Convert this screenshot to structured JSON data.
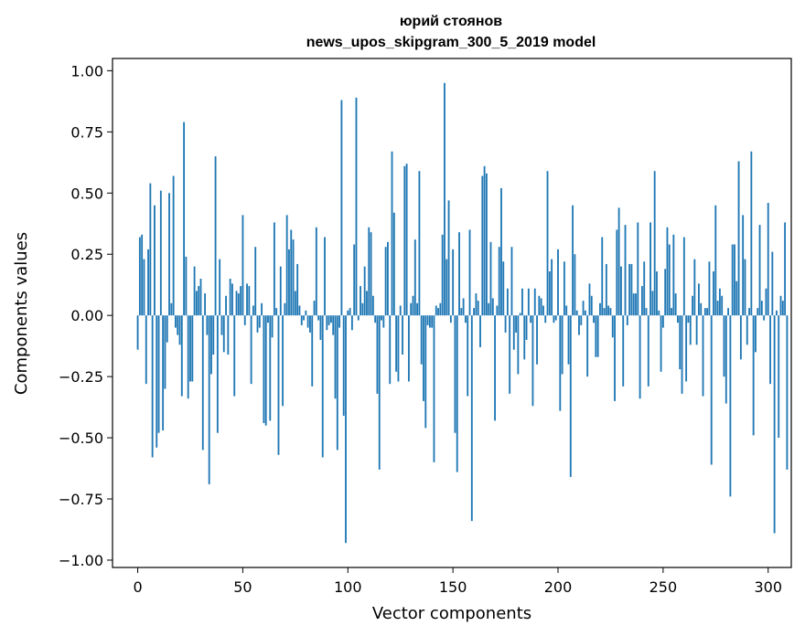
{
  "chart_data": {
    "type": "bar",
    "title": "юрий стоянов",
    "subtitle": "news_upos_skipgram_300_5_2019 model",
    "xlabel": "Vector components",
    "ylabel": "Components values",
    "xlim": [
      -12,
      311
    ],
    "ylim": [
      -1.03,
      1.05
    ],
    "xticks": [
      0,
      50,
      100,
      150,
      200,
      250,
      300
    ],
    "yticks": [
      1.0,
      0.75,
      0.5,
      0.25,
      0.0,
      -0.25,
      -0.5,
      -0.75,
      -1.0
    ],
    "xtick_labels": [
      "0",
      "50",
      "100",
      "150",
      "200",
      "250",
      "300"
    ],
    "ytick_labels": [
      "1.00",
      "0.75",
      "0.50",
      "0.25",
      "0.00",
      "−0.25",
      "−0.50",
      "−0.75",
      "−1.00"
    ],
    "bar_color": "#1f77b4",
    "series": [
      {
        "name": "components",
        "values": [
          -0.14,
          0.32,
          0.33,
          0.23,
          -0.28,
          0.27,
          0.54,
          -0.58,
          0.45,
          -0.54,
          -0.48,
          0.51,
          -0.47,
          -0.3,
          -0.11,
          0.5,
          0.05,
          0.57,
          -0.05,
          -0.08,
          -0.12,
          -0.33,
          0.79,
          0.24,
          -0.34,
          -0.27,
          -0.27,
          0.2,
          0.1,
          0.12,
          0.15,
          -0.55,
          0.09,
          -0.08,
          -0.69,
          -0.24,
          -0.16,
          0.65,
          -0.48,
          0.23,
          -0.08,
          -0.15,
          0.08,
          -0.16,
          0.15,
          0.13,
          -0.33,
          0.1,
          0.09,
          0.12,
          0.41,
          -0.04,
          0.13,
          0.12,
          -0.28,
          0.04,
          0.28,
          -0.07,
          -0.05,
          0.05,
          -0.44,
          -0.45,
          -0.03,
          -0.43,
          -0.09,
          0.38,
          0.03,
          -0.57,
          0.2,
          -0.37,
          0.05,
          0.41,
          0.27,
          0.35,
          0.31,
          0.1,
          0.21,
          0.04,
          -0.04,
          -0.02,
          0.02,
          -0.05,
          -0.07,
          -0.29,
          0.06,
          0.36,
          -0.02,
          -0.1,
          -0.58,
          0.32,
          -0.06,
          -0.04,
          -0.03,
          -0.08,
          -0.34,
          -0.55,
          -0.05,
          0.88,
          -0.41,
          -0.93,
          0.02,
          0.03,
          -0.06,
          0.29,
          0.89,
          -0.02,
          0.12,
          0.05,
          0.2,
          0.1,
          0.36,
          0.34,
          0.08,
          -0.03,
          -0.32,
          -0.63,
          -0.02,
          -0.05,
          0.28,
          0.3,
          -0.28,
          0.67,
          0.42,
          -0.23,
          -0.27,
          0.04,
          -0.16,
          0.61,
          0.62,
          -0.27,
          0.05,
          0.08,
          0.31,
          0.05,
          0.59,
          -0.2,
          -0.35,
          -0.46,
          -0.04,
          -0.05,
          -0.05,
          -0.6,
          0.04,
          0.03,
          0.05,
          0.33,
          0.95,
          0.23,
          0.47,
          -0.03,
          0.27,
          -0.48,
          -0.64,
          0.34,
          0.03,
          0.07,
          -0.03,
          -0.33,
          0.35,
          -0.84,
          0.03,
          0.09,
          0.06,
          -0.13,
          0.57,
          0.61,
          0.58,
          0.05,
          0.3,
          0.07,
          -0.43,
          0.04,
          0.28,
          0.52,
          0.22,
          -0.07,
          0.11,
          -0.32,
          0.28,
          -0.14,
          -0.07,
          -0.24,
          0.01,
          0.11,
          -0.18,
          -0.1,
          0.11,
          -0.03,
          -0.37,
          0.11,
          -0.2,
          0.08,
          0.07,
          0.04,
          -0.03,
          0.59,
          0.18,
          0.23,
          -0.03,
          -0.02,
          0.27,
          -0.39,
          -0.24,
          0.22,
          0.04,
          -0.2,
          -0.66,
          0.45,
          0.25,
          0.02,
          -0.08,
          -0.04,
          0.06,
          0.02,
          -0.25,
          0.13,
          0.08,
          -0.03,
          -0.17,
          -0.17,
          0.05,
          0.32,
          0.03,
          0.21,
          0.04,
          0.03,
          -0.09,
          -0.35,
          0.35,
          0.44,
          0.2,
          -0.29,
          0.37,
          -0.04,
          0.21,
          0.21,
          0.09,
          0.09,
          0.38,
          -0.34,
          0.12,
          0.22,
          0.03,
          -0.29,
          0.38,
          0.1,
          0.59,
          0.18,
          0.02,
          -0.23,
          -0.05,
          0.19,
          0.36,
          0.29,
          0.03,
          0.33,
          0.09,
          -0.03,
          -0.22,
          -0.32,
          0.32,
          -0.27,
          -0.03,
          -0.12,
          0.08,
          0.23,
          -0.12,
          0.13,
          0.05,
          -0.33,
          0.03,
          0.03,
          0.22,
          -0.61,
          0.18,
          0.45,
          0.06,
          0.11,
          0.08,
          -0.25,
          -0.36,
          0.03,
          -0.74,
          0.29,
          0.29,
          0.14,
          0.63,
          -0.18,
          0.41,
          0.23,
          -0.12,
          0.03,
          0.67,
          -0.49,
          -0.15,
          0.03,
          0.37,
          0.06,
          -0.02,
          0.11,
          0.46,
          -0.28,
          0.26,
          -0.89,
          0.02,
          -0.5,
          0.08,
          0.06,
          0.38,
          -0.63
        ]
      }
    ]
  }
}
